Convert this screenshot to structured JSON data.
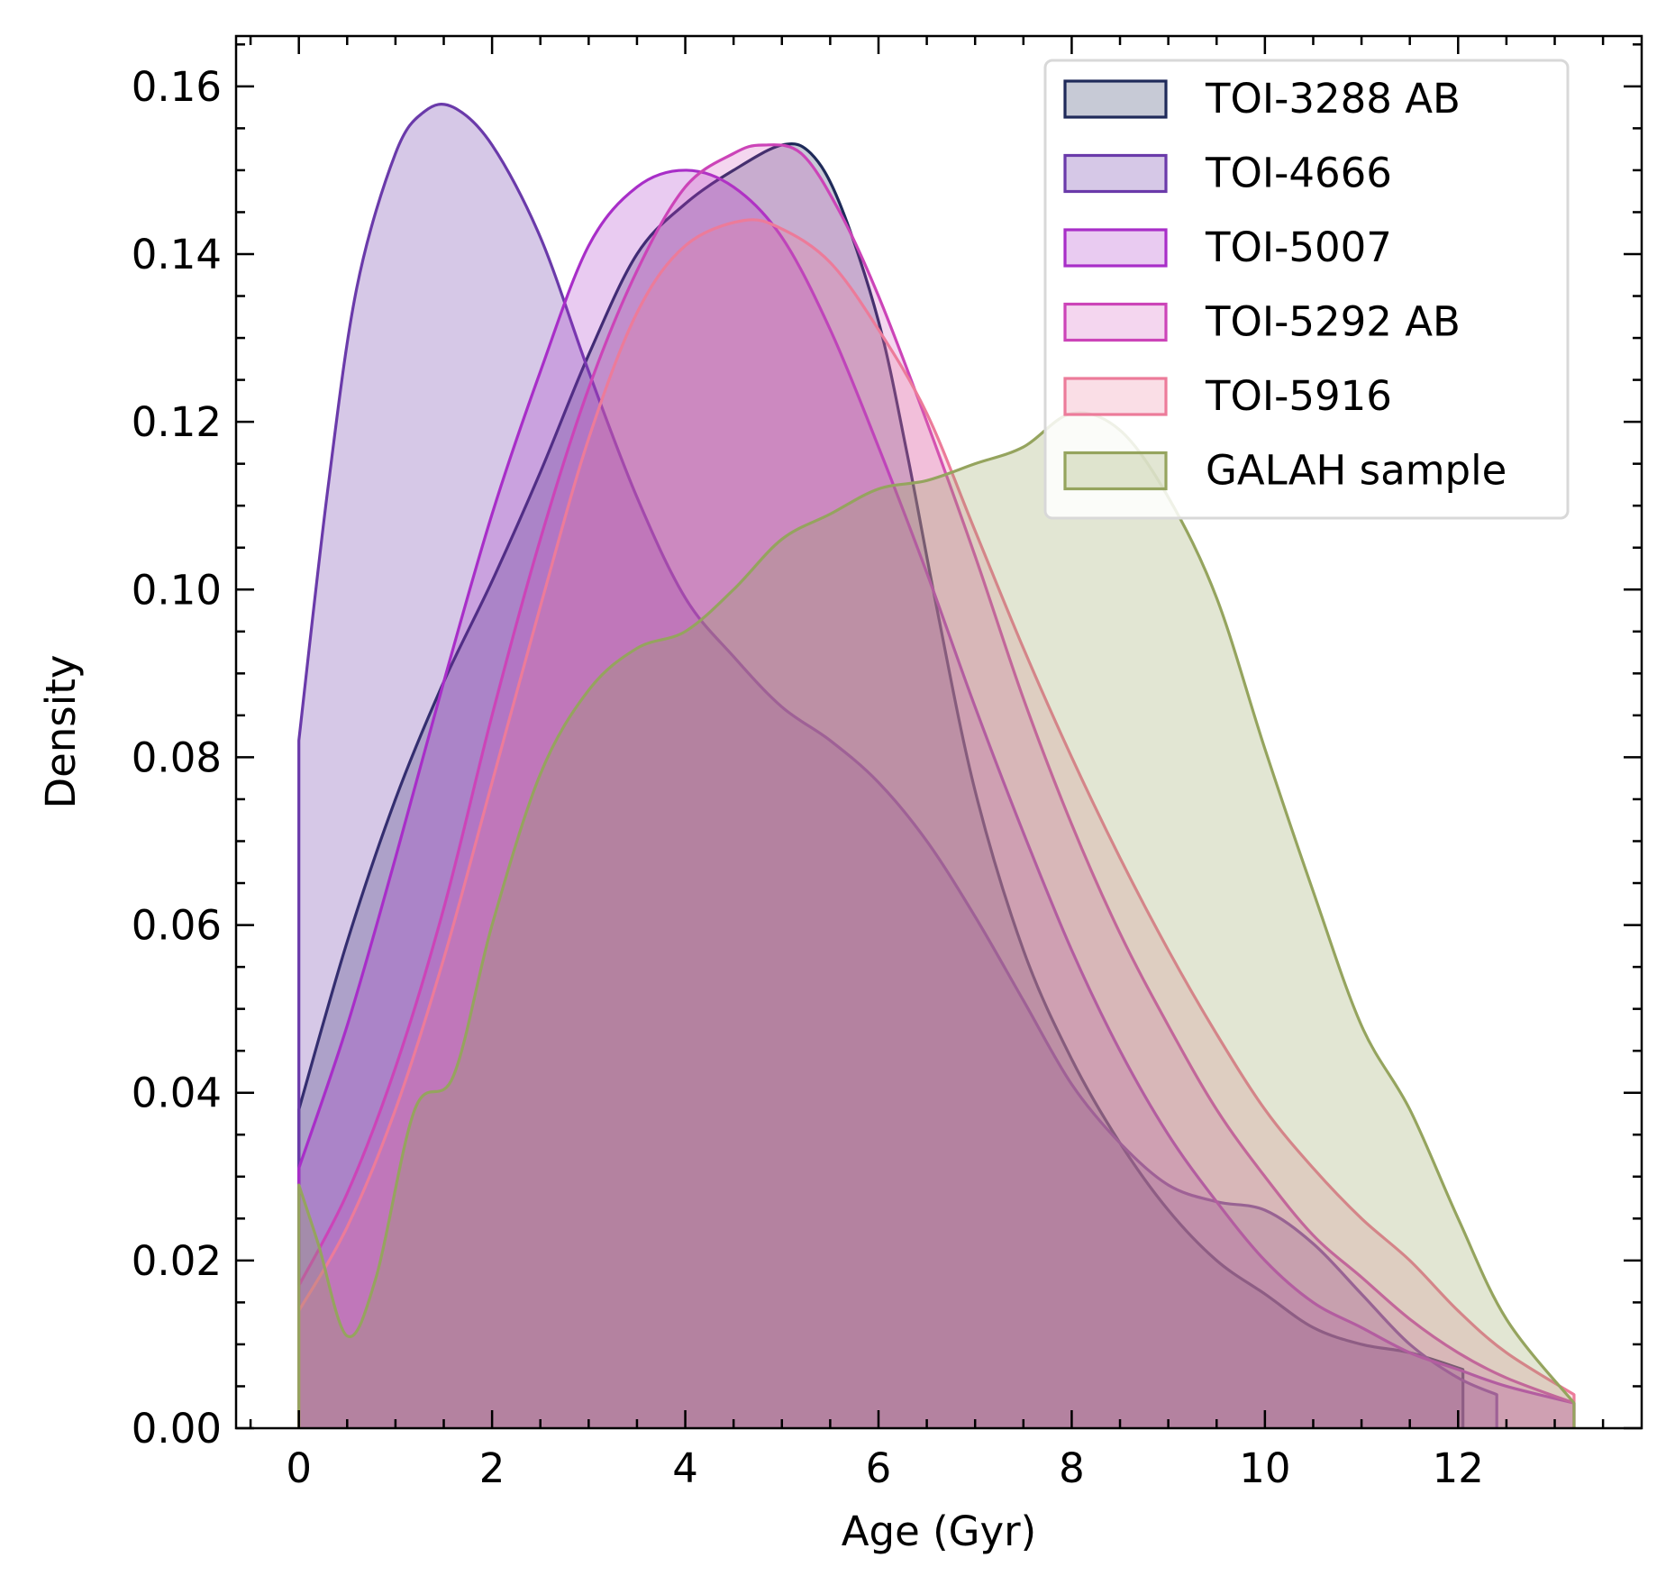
{
  "chart_data": {
    "type": "area",
    "title": "",
    "xlabel": "Age (Gyr)",
    "ylabel": "Density",
    "xlim": [
      -0.65,
      13.9
    ],
    "ylim": [
      0,
      0.166
    ],
    "xticks": [
      0,
      2,
      4,
      6,
      8,
      10,
      12
    ],
    "xtick_labels": [
      "0",
      "2",
      "4",
      "6",
      "8",
      "10",
      "12"
    ],
    "yticks": [
      0,
      0.02,
      0.04,
      0.06,
      0.08,
      0.1,
      0.12,
      0.14,
      0.16
    ],
    "ytick_labels": [
      "0.00",
      "0.02",
      "0.04",
      "0.06",
      "0.08",
      "0.10",
      "0.12",
      "0.14",
      "0.16"
    ],
    "grid": false,
    "legend_position": "top-right",
    "series": [
      {
        "name": "TOI-3288 AB",
        "color": "#1f2a5a",
        "fill_opacity": 0.25,
        "x": [
          0,
          0,
          0.5,
          1,
          1.5,
          2,
          2.5,
          3,
          3.5,
          4,
          4.5,
          5,
          5.3,
          5.6,
          6,
          6.3,
          6.6,
          7,
          7.5,
          8,
          8.5,
          9,
          9.5,
          10,
          10.5,
          11,
          11.5,
          12.05,
          12.05
        ],
        "y": [
          0,
          0.038,
          0.058,
          0.075,
          0.089,
          0.101,
          0.114,
          0.128,
          0.14,
          0.146,
          0.15,
          0.153,
          0.152,
          0.146,
          0.132,
          0.116,
          0.098,
          0.076,
          0.057,
          0.044,
          0.034,
          0.026,
          0.02,
          0.016,
          0.012,
          0.01,
          0.009,
          0.007,
          0
        ]
      },
      {
        "name": "TOI-4666",
        "color": "#6a3aaa",
        "fill_opacity": 0.28,
        "x": [
          0,
          0,
          0.3,
          0.6,
          1,
          1.3,
          1.6,
          2,
          2.5,
          3,
          3.5,
          4,
          4.5,
          5,
          5.5,
          6,
          6.5,
          7,
          7.5,
          8,
          8.5,
          9,
          9.5,
          10,
          10.5,
          11,
          11.5,
          12,
          12.4,
          12.4
        ],
        "y": [
          0,
          0.082,
          0.112,
          0.136,
          0.152,
          0.157,
          0.1575,
          0.153,
          0.142,
          0.126,
          0.111,
          0.099,
          0.092,
          0.086,
          0.082,
          0.077,
          0.07,
          0.061,
          0.051,
          0.041,
          0.034,
          0.029,
          0.027,
          0.026,
          0.022,
          0.016,
          0.01,
          0.006,
          0.004,
          0
        ]
      },
      {
        "name": "TOI-5007",
        "color": "#a82ec8",
        "fill_opacity": 0.25,
        "x": [
          0,
          0,
          0.5,
          1,
          1.5,
          2,
          2.5,
          3,
          3.5,
          4,
          4.5,
          5,
          5.5,
          6,
          6.5,
          7,
          7.5,
          8,
          8.5,
          9,
          9.5,
          10,
          10.5,
          11,
          11.5,
          12,
          12.5,
          13.2,
          13.2
        ],
        "y": [
          0,
          0.031,
          0.048,
          0.068,
          0.089,
          0.109,
          0.126,
          0.141,
          0.148,
          0.15,
          0.148,
          0.142,
          0.131,
          0.117,
          0.102,
          0.086,
          0.071,
          0.057,
          0.045,
          0.035,
          0.027,
          0.02,
          0.015,
          0.012,
          0.009,
          0.007,
          0.005,
          0.003,
          0
        ]
      },
      {
        "name": "TOI-5292 AB",
        "color": "#cc44b8",
        "fill_opacity": 0.22,
        "x": [
          0,
          0,
          0.5,
          1,
          1.5,
          2,
          2.5,
          3,
          3.5,
          4,
          4.5,
          4.8,
          5.2,
          5.6,
          6,
          6.5,
          7,
          7.5,
          8,
          8.5,
          9,
          9.5,
          10,
          10.5,
          11,
          11.5,
          12,
          12.5,
          13.2,
          13.2
        ],
        "y": [
          0,
          0.017,
          0.028,
          0.043,
          0.062,
          0.085,
          0.106,
          0.124,
          0.138,
          0.148,
          0.152,
          0.153,
          0.152,
          0.145,
          0.135,
          0.12,
          0.104,
          0.087,
          0.072,
          0.059,
          0.048,
          0.038,
          0.03,
          0.023,
          0.018,
          0.013,
          0.009,
          0.006,
          0.003,
          0
        ]
      },
      {
        "name": "TOI-5916",
        "color": "#ec7b9a",
        "fill_opacity": 0.25,
        "x": [
          0,
          0,
          0.5,
          1,
          1.5,
          2,
          2.5,
          3,
          3.5,
          4,
          4.6,
          5,
          5.5,
          6,
          6.5,
          7,
          7.5,
          8,
          8.5,
          9,
          9.5,
          10,
          10.5,
          11,
          11.5,
          12,
          12.5,
          13.2,
          13.2
        ],
        "y": [
          0,
          0.014,
          0.024,
          0.038,
          0.056,
          0.077,
          0.098,
          0.118,
          0.133,
          0.141,
          0.144,
          0.143,
          0.139,
          0.131,
          0.121,
          0.107,
          0.093,
          0.08,
          0.068,
          0.057,
          0.047,
          0.038,
          0.031,
          0.025,
          0.02,
          0.014,
          0.009,
          0.004,
          0
        ]
      },
      {
        "name": "GALAH sample",
        "color": "#95a45e",
        "fill_opacity": 0.27,
        "x": [
          0,
          0,
          0.2,
          0.5,
          0.8,
          1.2,
          1.6,
          2,
          2.5,
          3,
          3.5,
          4,
          4.5,
          5,
          5.5,
          6,
          6.5,
          7,
          7.5,
          8,
          8.5,
          9,
          9.5,
          10,
          10.5,
          11,
          11.5,
          12,
          12.5,
          13.2,
          13.2
        ],
        "y": [
          0,
          0.029,
          0.022,
          0.011,
          0.018,
          0.038,
          0.042,
          0.06,
          0.078,
          0.088,
          0.093,
          0.095,
          0.1,
          0.106,
          0.109,
          0.112,
          0.113,
          0.115,
          0.117,
          0.121,
          0.119,
          0.111,
          0.099,
          0.081,
          0.064,
          0.048,
          0.038,
          0.025,
          0.013,
          0.003,
          0
        ]
      }
    ]
  }
}
